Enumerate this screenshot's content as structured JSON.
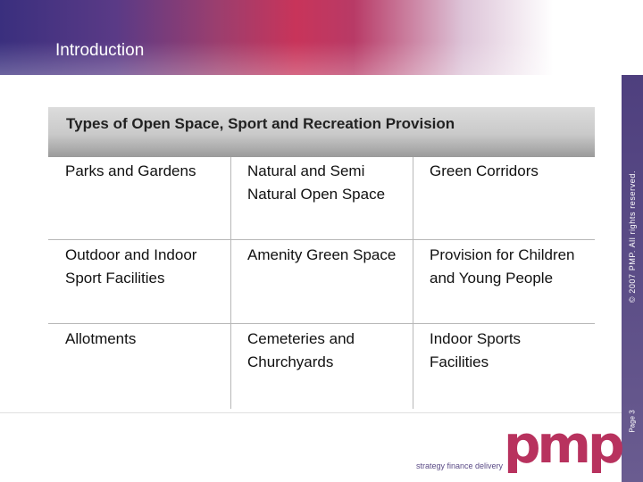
{
  "header": {
    "title": "Introduction"
  },
  "section": {
    "title": "Types of Open Space, Sport and Recreation Provision"
  },
  "table": {
    "rows": [
      [
        "Parks and Gardens",
        "Natural and Semi Natural Open Space",
        "Green Corridors"
      ],
      [
        "Outdoor and Indoor Sport Facilities",
        "Amenity Green Space",
        "Provision for Children and Young People"
      ],
      [
        "Allotments",
        "Cemeteries and Churchyards",
        "Indoor Sports Facilities"
      ]
    ]
  },
  "sidebar": {
    "copyright": "© 2007 PMP. All rights reserved.",
    "page": "Page 3"
  },
  "logo": {
    "mark": "pmp",
    "tagline": "strategy finance delivery",
    "color": "#b8325e"
  }
}
